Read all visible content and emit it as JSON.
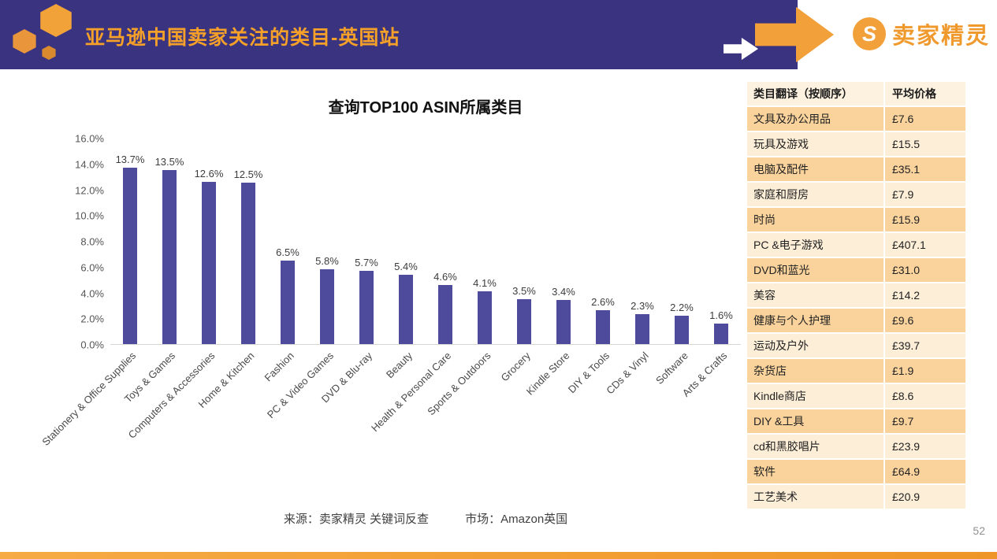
{
  "header": {
    "title": "亚马逊中国卖家关注的类目-英国站",
    "logo_text": "卖家精灵",
    "logo_initial": "S"
  },
  "chart_data": {
    "type": "bar",
    "title": "查询TOP100 ASIN所属类目",
    "categories": [
      "Stationery & Office Supplies",
      "Toys & Games",
      "Computers & Accessories",
      "Home & Kitchen",
      "Fashion",
      "PC & Video Games",
      "DVD & Blu-ray",
      "Beauty",
      "Health & Personal Care",
      "Sports & Outdoors",
      "Grocery",
      "Kindle Store",
      "DIY & Tools",
      "CDs & Vinyl",
      "Software",
      "Arts & Crafts"
    ],
    "values": [
      13.7,
      13.5,
      12.6,
      12.5,
      6.5,
      5.8,
      5.7,
      5.4,
      4.6,
      4.1,
      3.5,
      3.4,
      2.6,
      2.3,
      2.2,
      1.6
    ],
    "value_labels": [
      "13.7%",
      "13.5%",
      "12.6%",
      "12.5%",
      "6.5%",
      "5.8%",
      "5.7%",
      "5.4%",
      "4.6%",
      "4.1%",
      "3.5%",
      "3.4%",
      "2.6%",
      "2.3%",
      "2.2%",
      "1.6%"
    ],
    "xlabel": "",
    "ylabel": "",
    "ylim": [
      0,
      16
    ],
    "grid": false,
    "legend_position": "none",
    "bar_color": "#4E4B9C",
    "yticks": [
      {
        "value": 16,
        "label": "16.0%"
      },
      {
        "value": 14,
        "label": "14.0%"
      },
      {
        "value": 12,
        "label": "12.0%"
      },
      {
        "value": 10,
        "label": "10.0%"
      },
      {
        "value": 8,
        "label": "8.0%"
      },
      {
        "value": 6,
        "label": "6.0%"
      },
      {
        "value": 4,
        "label": "4.0%"
      },
      {
        "value": 2,
        "label": "2.0%"
      },
      {
        "value": 0,
        "label": "0.0%"
      }
    ]
  },
  "table": {
    "headers": [
      "类目翻译（按顺序）",
      "平均价格"
    ],
    "rows": [
      {
        "category": "文具及办公用品",
        "price": "£7.6"
      },
      {
        "category": "玩具及游戏",
        "price": "£15.5"
      },
      {
        "category": "电脑及配件",
        "price": "£35.1"
      },
      {
        "category": "家庭和厨房",
        "price": "£7.9"
      },
      {
        "category": "时尚",
        "price": "£15.9"
      },
      {
        "category": "PC &电子游戏",
        "price": "£407.1"
      },
      {
        "category": "DVD和蓝光",
        "price": "£31.0"
      },
      {
        "category": "美容",
        "price": "£14.2"
      },
      {
        "category": "健康与个人护理",
        "price": "£9.6"
      },
      {
        "category": "运动及户外",
        "price": "£39.7"
      },
      {
        "category": "杂货店",
        "price": "£1.9"
      },
      {
        "category": "Kindle商店",
        "price": "£8.6"
      },
      {
        "category": "DIY &工具",
        "price": "£9.7"
      },
      {
        "category": "cd和黑胶唱片",
        "price": "£23.9"
      },
      {
        "category": "软件",
        "price": "£64.9"
      },
      {
        "category": "工艺美术",
        "price": "£20.9"
      }
    ]
  },
  "footer": {
    "source": "来源：卖家精灵 关键词反查",
    "market": "市场：Amazon英国",
    "page_number": "52"
  },
  "colors": {
    "band": "#393380",
    "accent_orange": "#F2A03A",
    "title_orange": "#F5A029",
    "bar": "#4E4B9C",
    "table_row_dark": "#FAD39C",
    "table_row_light": "#FDEED7",
    "table_header_bg": "#FDF2E0"
  }
}
